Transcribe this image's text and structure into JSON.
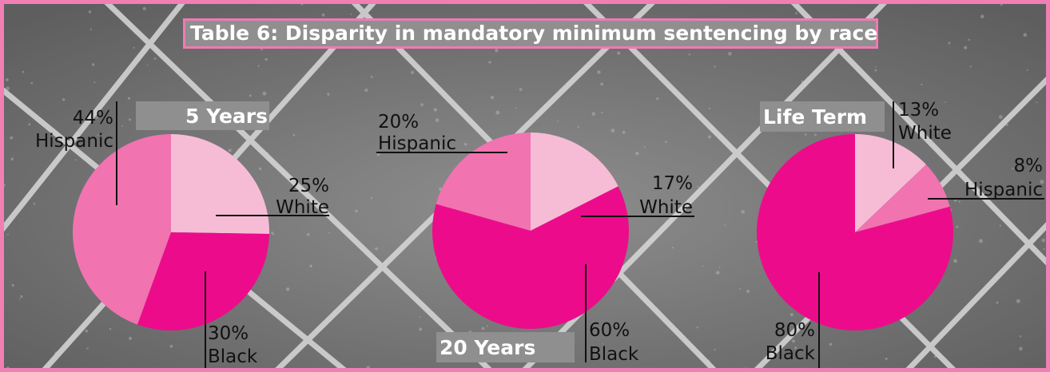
{
  "title": "Table 6: Disparity in mandatory minimum sentencing by race",
  "colors": {
    "White": "#f6bcd6",
    "Hispanic": "#f173b0",
    "Black": "#ec0c8b",
    "frame": "#ef7fb4",
    "plate": "#8f8f8f"
  },
  "chart_data": [
    {
      "type": "pie",
      "title": "5 Years",
      "slices": [
        {
          "name": "White",
          "value": 25,
          "label_value": "25%",
          "label_name": "White"
        },
        {
          "name": "Black",
          "value": 30,
          "label_value": "30%",
          "label_name": "Black"
        },
        {
          "name": "Hispanic",
          "value": 44,
          "label_value": "44%",
          "label_name": "Hispanic"
        }
      ]
    },
    {
      "type": "pie",
      "title": "20 Years",
      "slices": [
        {
          "name": "White",
          "value": 17,
          "label_value": "17%",
          "label_name": "White"
        },
        {
          "name": "Black",
          "value": 60,
          "label_value": "60%",
          "label_name": "Black"
        },
        {
          "name": "Hispanic",
          "value": 20,
          "label_value": "20%",
          "label_name": "Hispanic"
        }
      ]
    },
    {
      "type": "pie",
      "title": "Life Term",
      "slices": [
        {
          "name": "White",
          "value": 13,
          "label_value": "13%",
          "label_name": "White"
        },
        {
          "name": "Hispanic",
          "value": 8,
          "label_value": "8%",
          "label_name": "Hispanic"
        },
        {
          "name": "Black",
          "value": 80,
          "label_value": "80%",
          "label_name": "Black"
        }
      ]
    }
  ]
}
